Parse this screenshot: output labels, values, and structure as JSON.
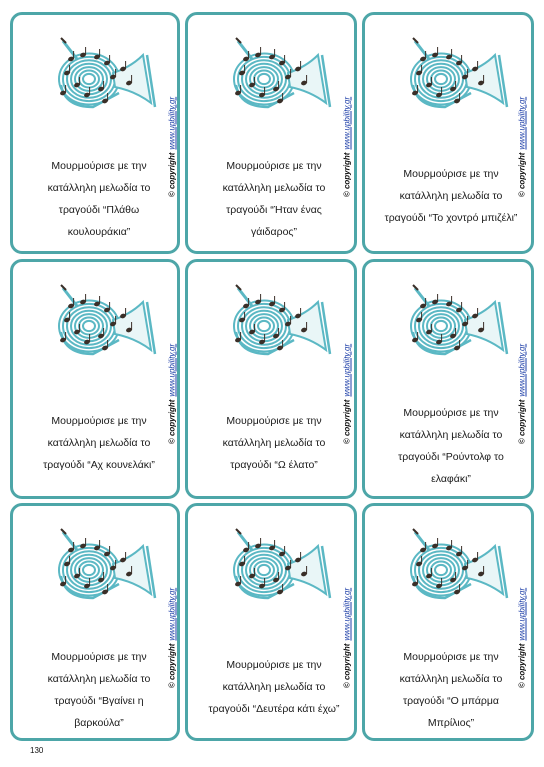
{
  "cards": [
    {
      "lines": [
        "Μουρμούρισε με την",
        "κατάλληλη μελωδία το",
        "τραγούδι “Πλάθω",
        "κουλουράκια”"
      ],
      "copyright": "© copyright",
      "url": "www.upbility.gr"
    },
    {
      "lines": [
        "Μουρμούρισε με την",
        "κατάλληλη μελωδία το",
        "τραγούδι “Ήταν ένας",
        "γάιδαρος”"
      ],
      "copyright": "© copyright",
      "url": "www.upbility.gr"
    },
    {
      "lines": [
        "Μουρμούρισε με την",
        "κατάλληλη μελωδία το",
        "τραγούδι “Το χοντρό μπιζέλι”"
      ],
      "copyright": "© copyright",
      "url": "www.upbility.gr"
    },
    {
      "lines": [
        "Μουρμούρισε με την",
        "κατάλληλη μελωδία το",
        "τραγούδι “Αχ κουνελάκι”"
      ],
      "copyright": "© copyright",
      "url": "www.upbility.gr"
    },
    {
      "lines": [
        "Μουρμούρισε με την",
        "κατάλληλη μελωδία το",
        "τραγούδι “Ω έλατο”"
      ],
      "copyright": "© copyright",
      "url": "www.upbility.gr"
    },
    {
      "lines": [
        "Μουρμούρισε με την",
        "κατάλληλη μελωδία το",
        "τραγούδι “Ρούντολφ το",
        "ελαφάκι”"
      ],
      "copyright": "© copyright",
      "url": "www.upbility.gr"
    },
    {
      "lines": [
        "Μουρμούρισε με την",
        "κατάλληλη μελωδία το",
        "τραγούδι “Βγαίνει η",
        "βαρκούλα”"
      ],
      "copyright": "© copyright",
      "url": "www.upbility.gr"
    },
    {
      "lines": [
        "Μουρμούρισε με την",
        "κατάλληλη μελωδία το",
        "τραγούδι “Δευτέρα κάτι έχω”"
      ],
      "copyright": "© copyright",
      "url": "www.upbility.gr"
    },
    {
      "lines": [
        "Μουρμούρισε με την",
        "κατάλληλη μελωδία το",
        "τραγούδι “Ο μπάρμα",
        "Μπρίλιος”"
      ],
      "copyright": "© copyright",
      "url": "www.upbility.gr"
    }
  ],
  "page_number": "130",
  "colors": {
    "border": "#4da6a8",
    "horn": "#5bb8c4",
    "note": "#3a2f28",
    "link": "#1e3fa8"
  },
  "icons": {
    "card_image": "french-horn-with-music-notes-icon"
  }
}
